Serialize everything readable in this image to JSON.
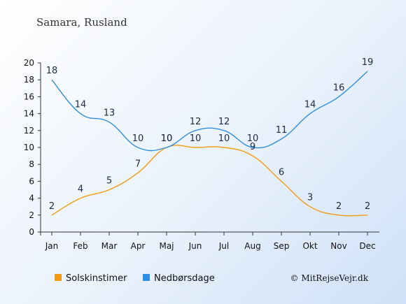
{
  "chart_data": {
    "type": "line",
    "title": "Samara, Rusland",
    "categories": [
      "Jan",
      "Feb",
      "Mar",
      "Apr",
      "Maj",
      "Jun",
      "Jul",
      "Aug",
      "Sep",
      "Okt",
      "Nov",
      "Dec"
    ],
    "ylim": [
      0,
      20
    ],
    "yticks": [
      0,
      2,
      4,
      6,
      8,
      10,
      12,
      14,
      16,
      18,
      20
    ],
    "series": [
      {
        "name": "Solskinstimer",
        "color": "#f39c12",
        "values": [
          2,
          4,
          5,
          7,
          10,
          10,
          10,
          9,
          6,
          3,
          2,
          2
        ]
      },
      {
        "name": "Nedbørsdage",
        "color": "#2e8fe0",
        "values": [
          18,
          14,
          13,
          10,
          10,
          12,
          12,
          10,
          11,
          14,
          16,
          19
        ]
      }
    ],
    "legend": "bottom-left",
    "grid": false
  },
  "credit": "© MitRejseVejr.dk"
}
